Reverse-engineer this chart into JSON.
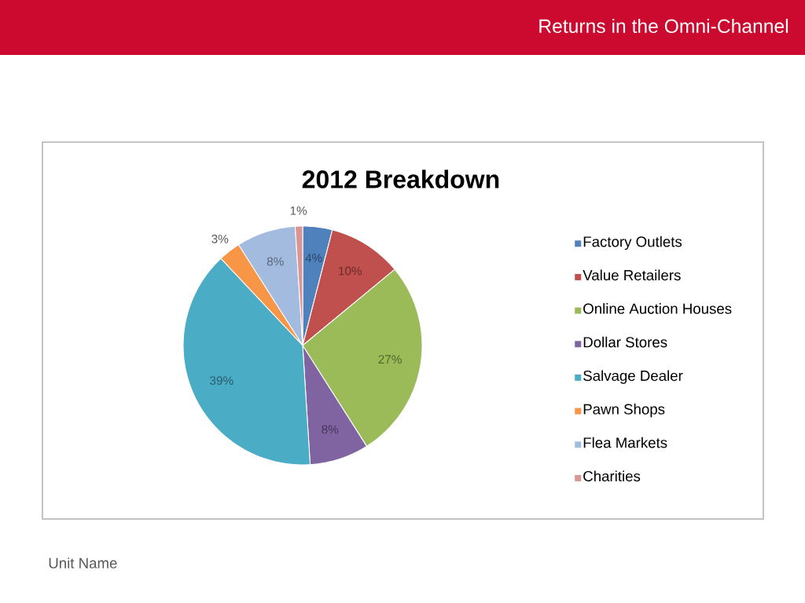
{
  "chart_data": {
    "type": "pie",
    "title": "2012 Breakdown",
    "categories": [
      "Factory Outlets",
      "Value Retailers",
      "Online Auction Houses",
      "Dollar Stores",
      "Salvage Dealer",
      "Pawn Shops",
      "Flea Markets",
      "Charities"
    ],
    "values": [
      4,
      10,
      27,
      8,
      39,
      3,
      8,
      1
    ],
    "colors": [
      "#4f81bd",
      "#c0504d",
      "#9bbb59",
      "#8064a2",
      "#4bacc6",
      "#f79646",
      "#a4bbe0",
      "#d99694"
    ],
    "value_labels": [
      "4%",
      "10%",
      "27%",
      "8%",
      "39%",
      "3%",
      "8%",
      "1%"
    ],
    "legend": "right",
    "annotations": [
      "Returns in the Omni-Channel",
      "Unit Name"
    ]
  }
}
